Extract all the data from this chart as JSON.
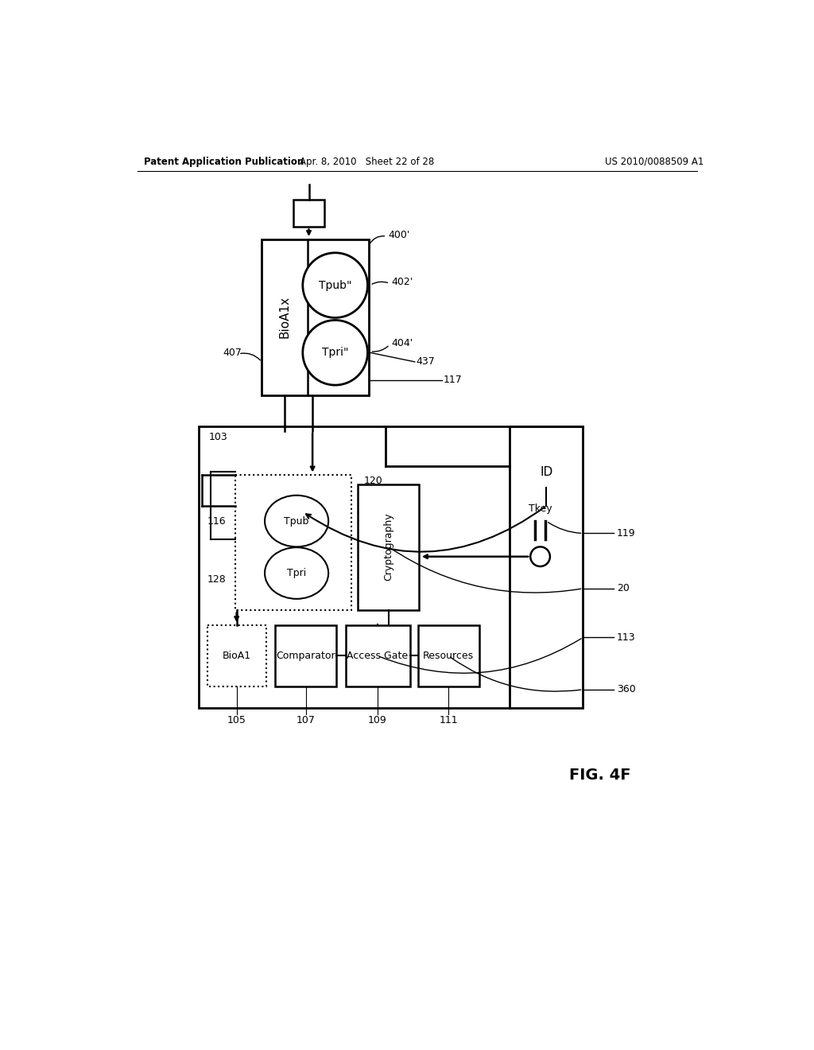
{
  "bg_color": "#ffffff",
  "header_left": "Patent Application Publication",
  "header_mid": "Apr. 8, 2010   Sheet 22 of 28",
  "header_right": "US 2010/0088509 A1"
}
